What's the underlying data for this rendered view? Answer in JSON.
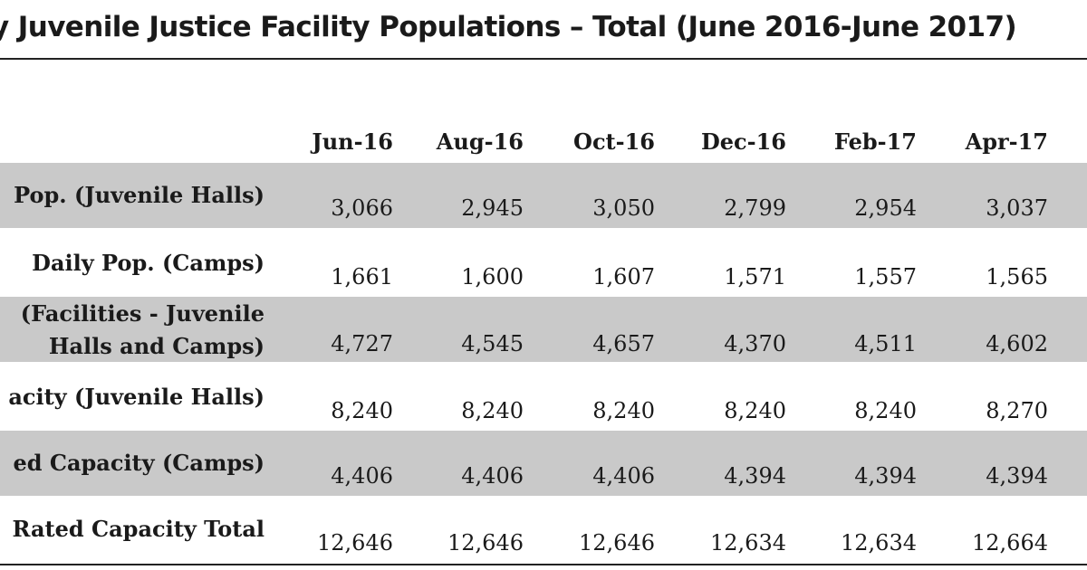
{
  "title": "y Juvenile Justice Facility Populations – Total (June 2016-June 2017)",
  "columns": [
    "Jun-16",
    "Aug-16",
    "Oct-16",
    "Dec-16",
    "Feb-17",
    "Apr-17"
  ],
  "rows": [
    {
      "label_line1": "Pop. (Juvenile Halls)",
      "label_line2": "",
      "values": [
        "3,066",
        "2,945",
        "3,050",
        "2,799",
        "2,954",
        "3,037"
      ]
    },
    {
      "label_line1": "Daily Pop.  (Camps)",
      "label_line2": "",
      "values": [
        "1,661",
        "1,600",
        "1,607",
        "1,571",
        "1,557",
        "1,565"
      ]
    },
    {
      "label_line1": "(Facilities - Juvenile",
      "label_line2": "Halls and Camps)",
      "values": [
        "4,727",
        "4,545",
        "4,657",
        "4,370",
        "4,511",
        "4,602"
      ]
    },
    {
      "label_line1": "acity (Juvenile Halls)",
      "label_line2": "",
      "values": [
        "8,240",
        "8,240",
        "8,240",
        "8,240",
        "8,240",
        "8,270"
      ]
    },
    {
      "label_line1": "ed Capacity (Camps)",
      "label_line2": "",
      "values": [
        "4,406",
        "4,406",
        "4,406",
        "4,394",
        "4,394",
        "4,394"
      ]
    },
    {
      "label_line1": "Rated Capacity Total",
      "label_line2": "",
      "values": [
        "12,646",
        "12,646",
        "12,646",
        "12,634",
        "12,634",
        "12,664"
      ]
    }
  ]
}
